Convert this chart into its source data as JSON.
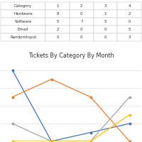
{
  "title": "Tickets By Category By Month",
  "categories": [
    1,
    2,
    3,
    4
  ],
  "series": {
    "Hardware": [
      8,
      0,
      1,
      2
    ],
    "Software": [
      5,
      7,
      5,
      0
    ],
    "Email": [
      2,
      0,
      0,
      5
    ],
    "RandomInput": [
      0,
      0,
      0,
      3
    ]
  },
  "colors": {
    "Hardware": "#4472C4",
    "Software": "#ED7D31",
    "Email": "#A5A5A5",
    "RandomInput": "#FFC000"
  },
  "table_data": [
    [
      "Category",
      "1",
      "2",
      "3",
      "4"
    ],
    [
      "Hardware",
      "8",
      "0",
      "1",
      "2"
    ],
    [
      "Software",
      "5",
      "7",
      "5",
      "0"
    ],
    [
      "Email",
      "2",
      "0",
      "0",
      "5"
    ],
    [
      "RandomInput",
      "0",
      "0",
      "0",
      "3"
    ]
  ],
  "ylim": [
    0,
    9
  ],
  "xlim": [
    0.7,
    4.3
  ],
  "figsize": [
    2.0,
    2.0
  ],
  "dpi": 100,
  "title_fontsize": 5.8,
  "legend_fontsize": 3.8,
  "tick_fontsize": 4.0,
  "table_fontsize": 4.0,
  "background_color": "#FFFFFF",
  "chart_bg_color": "#FFFFFF",
  "grid_color": "#D9D9D9",
  "linewidth": 0.9
}
